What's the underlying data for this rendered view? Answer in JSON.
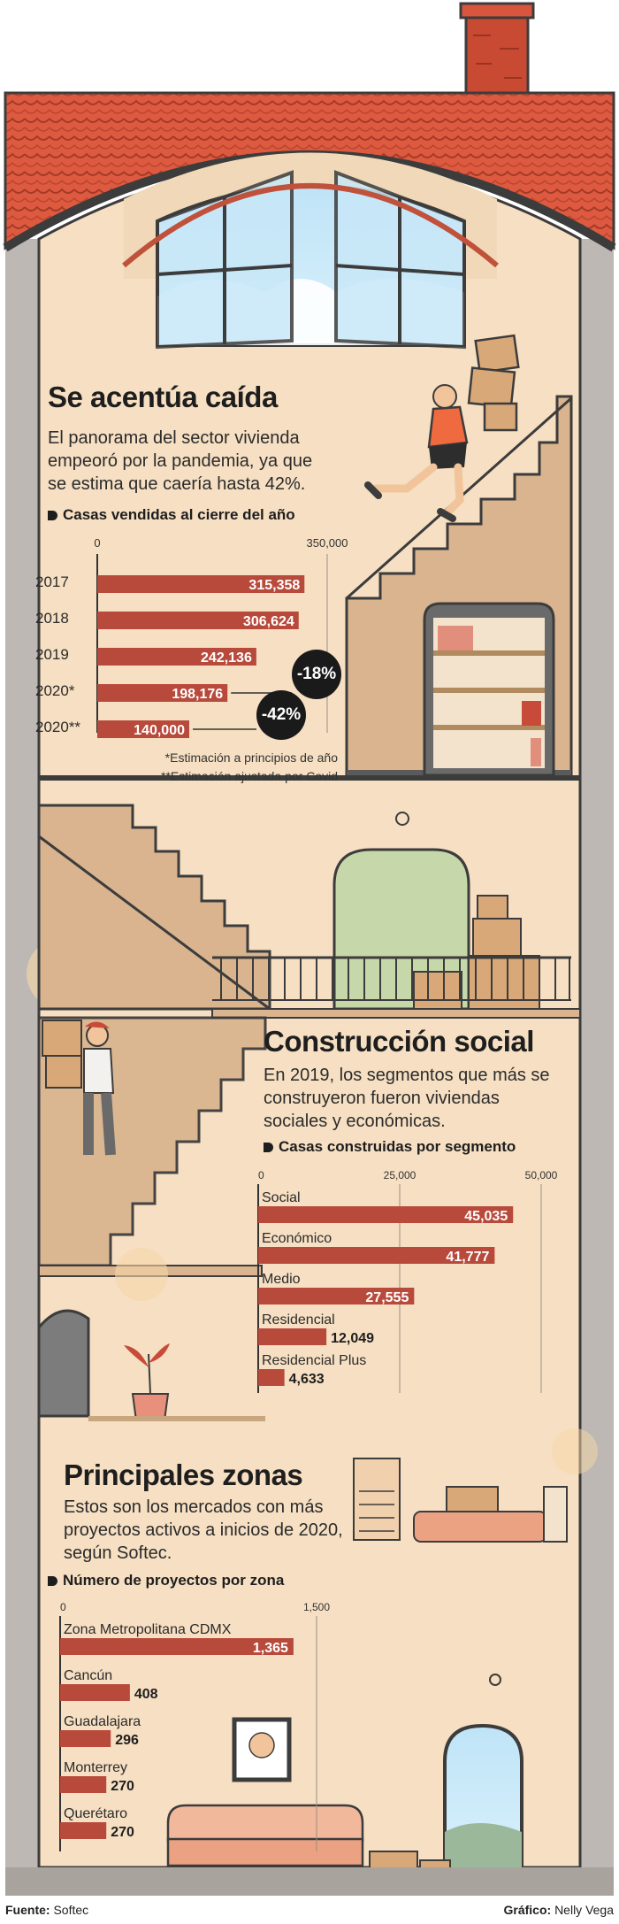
{
  "sections": {
    "s1": {
      "title": "Se acentúa caída",
      "lead": "El panorama del sector vivienda empeoró por la pandemia, ya que se estima que caería hasta 42%.",
      "subtitle": "Casas vendidas al cierre del año"
    },
    "s2": {
      "title": "Construcción social",
      "lead": "En 2019, los segmentos que más se construyeron fueron viviendas sociales y económicas.",
      "subtitle": "Casas construidas por segmento"
    },
    "s3": {
      "title": "Principales zonas",
      "lead": "Estos son los mercados con más proyectos activos a inicios de 2020, según Softec.",
      "subtitle": "Número de proyectos por zona"
    }
  },
  "notes": {
    "n1": "*Estimación a principios de año",
    "n2": "**Estimación ajustada por Covid"
  },
  "badges": {
    "b1": "-18%",
    "b2": "-42%"
  },
  "footer": {
    "source_label": "Fuente:",
    "source": "Softec",
    "credit_label": "Gráfico:",
    "credit": "Nelly Vega"
  },
  "colors": {
    "bar": "#b84a3c",
    "roof": "#d9553e",
    "wall": "#f7e1c5",
    "stairs": "#d9b48f",
    "outline": "#3c3c3c"
  },
  "chart_data": [
    {
      "type": "bar",
      "title": "Casas vendidas al cierre del año",
      "categories": [
        "2017",
        "2018",
        "2019",
        "2020*",
        "2020**"
      ],
      "values": [
        315358,
        306624,
        242136,
        198176,
        140000
      ],
      "value_labels": [
        "315,358",
        "306,624",
        "242,136",
        "198,176",
        "140,000"
      ],
      "xlim": [
        0,
        350000
      ],
      "ticks": [
        "0",
        "350,000"
      ]
    },
    {
      "type": "bar",
      "title": "Casas construidas por segmento",
      "categories": [
        "Social",
        "Económico",
        "Medio",
        "Residencial",
        "Residencial Plus"
      ],
      "values": [
        45035,
        41777,
        27555,
        12049,
        4633
      ],
      "value_labels": [
        "45,035",
        "41,777",
        "27,555",
        "12,049",
        "4,633"
      ],
      "xlim": [
        0,
        50000
      ],
      "ticks": [
        "0",
        "25,000",
        "50,000"
      ]
    },
    {
      "type": "bar",
      "title": "Número de proyectos por zona",
      "categories": [
        "Zona Metropolitana CDMX",
        "Cancún",
        "Guadalajara",
        "Monterrey",
        "Querétaro"
      ],
      "values": [
        1365,
        408,
        296,
        270,
        270
      ],
      "value_labels": [
        "1,365",
        "408",
        "296",
        "270",
        "270"
      ],
      "xlim": [
        0,
        1500
      ],
      "ticks": [
        "0",
        "1,500"
      ]
    }
  ]
}
